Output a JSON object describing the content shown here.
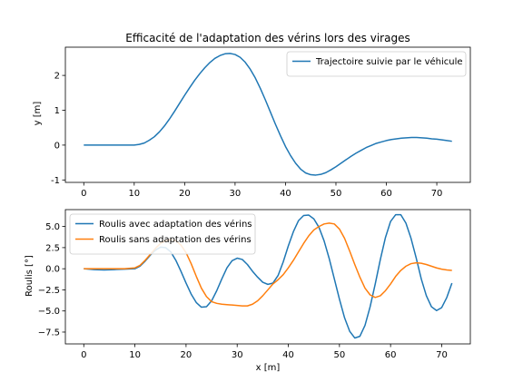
{
  "chart_data": [
    {
      "type": "line",
      "title": "Efficacité de l'adaptation des vérins lors des virages",
      "xlabel": "",
      "ylabel": "y [m]",
      "xlim": [
        -3.65,
        76.65
      ],
      "ylim": [
        -1.07,
        2.81
      ],
      "x_ticks": [
        0,
        10,
        20,
        30,
        40,
        50,
        60,
        70
      ],
      "y_ticks": [
        -1,
        0,
        1,
        2
      ],
      "grid": false,
      "legend_position": "upper right",
      "series": [
        {
          "name": "Trajectoire suivie par le véhicule",
          "color": "#1f77b4",
          "x": [
            0,
            5,
            10,
            11,
            12,
            13,
            14,
            15,
            16,
            17,
            18,
            19,
            20,
            21,
            22,
            23,
            24,
            25,
            26,
            27,
            28,
            29,
            30,
            31,
            32,
            33,
            34,
            35,
            36,
            37,
            38,
            39,
            40,
            41,
            42,
            43,
            44,
            45,
            46,
            47,
            48,
            49,
            50,
            51,
            52,
            53,
            54,
            55,
            56,
            57,
            58,
            59,
            60,
            61,
            62,
            63,
            64,
            65,
            66,
            67,
            68,
            69,
            70,
            71,
            72,
            73
          ],
          "y": [
            0,
            0,
            0,
            0.02,
            0.06,
            0.14,
            0.24,
            0.38,
            0.55,
            0.75,
            0.97,
            1.2,
            1.43,
            1.65,
            1.86,
            2.05,
            2.22,
            2.37,
            2.49,
            2.57,
            2.62,
            2.63,
            2.6,
            2.52,
            2.38,
            2.18,
            1.93,
            1.63,
            1.3,
            0.95,
            0.6,
            0.27,
            -0.04,
            -0.3,
            -0.52,
            -0.69,
            -0.8,
            -0.85,
            -0.86,
            -0.84,
            -0.79,
            -0.71,
            -0.62,
            -0.52,
            -0.42,
            -0.32,
            -0.23,
            -0.15,
            -0.07,
            -0.01,
            0.05,
            0.09,
            0.13,
            0.16,
            0.18,
            0.2,
            0.21,
            0.22,
            0.22,
            0.21,
            0.2,
            0.18,
            0.17,
            0.15,
            0.13,
            0.11
          ]
        }
      ]
    },
    {
      "type": "line",
      "title": "",
      "xlabel": "x [m]",
      "ylabel": "Roulis [°]",
      "xlim": [
        -3.6,
        75.6
      ],
      "ylim": [
        -8.9,
        7.0
      ],
      "x_ticks": [
        0,
        10,
        20,
        30,
        40,
        50,
        60,
        70
      ],
      "y_ticks": [
        -7.5,
        -5.0,
        -2.5,
        0.0,
        2.5,
        5.0
      ],
      "y_tick_labels": [
        "−7.5",
        "−5.0",
        "−2.5",
        "0.0",
        "2.5",
        "5.0"
      ],
      "grid": false,
      "legend_position": "upper left",
      "series": [
        {
          "name": "Roulis avec adaptation des vérins",
          "color": "#1f77b4",
          "x": [
            0,
            2,
            4,
            6,
            8,
            10,
            11,
            12,
            13,
            14,
            15,
            16,
            17,
            18,
            19,
            20,
            21,
            22,
            23,
            24,
            25,
            26,
            27,
            28,
            29,
            30,
            31,
            32,
            33,
            34,
            35,
            36,
            37,
            38,
            39,
            40,
            41,
            42,
            43,
            44,
            45,
            46,
            47,
            48,
            49,
            50,
            51,
            52,
            53,
            54,
            55,
            56,
            57,
            58,
            59,
            60,
            61,
            62,
            63,
            64,
            65,
            66,
            67,
            68,
            69,
            70,
            71,
            72
          ],
          "y": [
            0,
            -0.1,
            -0.15,
            -0.1,
            -0.05,
            0,
            0.3,
            0.9,
            1.6,
            2.2,
            2.55,
            2.5,
            2.0,
            1.0,
            -0.3,
            -1.7,
            -3.0,
            -4.0,
            -4.55,
            -4.5,
            -3.8,
            -2.6,
            -1.2,
            0.1,
            0.95,
            1.25,
            1.1,
            0.5,
            -0.3,
            -1.0,
            -1.6,
            -1.85,
            -1.7,
            -0.8,
            0.8,
            2.7,
            4.4,
            5.7,
            6.3,
            6.35,
            5.9,
            4.9,
            3.3,
            1.2,
            -1.2,
            -3.6,
            -5.8,
            -7.4,
            -8.2,
            -8.0,
            -6.7,
            -4.5,
            -1.8,
            1.1,
            3.7,
            5.6,
            6.4,
            6.4,
            5.4,
            3.6,
            1.3,
            -1.2,
            -3.2,
            -4.5,
            -4.95,
            -4.6,
            -3.4,
            -1.7
          ]
        },
        {
          "name": "Roulis sans adaptation des vérins",
          "color": "#ff7f0e",
          "x": [
            0,
            2,
            4,
            6,
            8,
            10,
            11,
            12,
            13,
            14,
            15,
            16,
            17,
            18,
            19,
            20,
            21,
            22,
            23,
            24,
            25,
            26,
            27,
            28,
            29,
            30,
            31,
            32,
            33,
            34,
            35,
            36,
            37,
            38,
            39,
            40,
            41,
            42,
            43,
            44,
            45,
            46,
            47,
            48,
            49,
            50,
            51,
            52,
            53,
            54,
            55,
            56,
            57,
            58,
            59,
            60,
            61,
            62,
            63,
            64,
            65,
            66,
            67,
            68,
            69,
            70,
            71,
            72
          ],
          "y": [
            0,
            0,
            0,
            0,
            0,
            0.1,
            0.4,
            1.0,
            1.7,
            2.4,
            3.0,
            3.3,
            3.45,
            3.3,
            2.8,
            1.9,
            0.6,
            -0.9,
            -2.3,
            -3.3,
            -3.9,
            -4.1,
            -4.2,
            -4.25,
            -4.3,
            -4.35,
            -4.4,
            -4.4,
            -4.2,
            -3.8,
            -3.2,
            -2.5,
            -1.8,
            -1.3,
            -0.7,
            0.1,
            1.0,
            2.0,
            3.0,
            3.9,
            4.6,
            5.0,
            5.3,
            5.4,
            5.3,
            4.7,
            3.6,
            2.1,
            0.5,
            -1.0,
            -2.3,
            -3.1,
            -3.4,
            -3.2,
            -2.6,
            -1.8,
            -0.9,
            -0.2,
            0.3,
            0.6,
            0.7,
            0.65,
            0.5,
            0.3,
            0.1,
            -0.05,
            -0.15,
            -0.2
          ]
        }
      ]
    }
  ]
}
